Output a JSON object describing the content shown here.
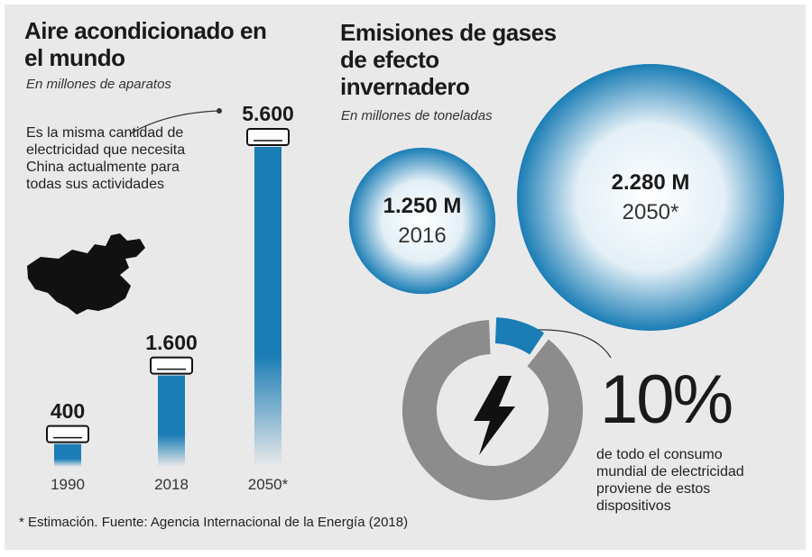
{
  "chart_data": [
    {
      "type": "bar",
      "title": "Aire acondicionado en el mundo",
      "subtitle": "En millones de aparatos",
      "annotation": "Es la misma cantidad de electricidad que necesita China actualmente para todas sus actividades",
      "categories": [
        "1990",
        "2018",
        "2050*"
      ],
      "values": [
        400,
        1600,
        5600
      ],
      "value_labels": [
        "400",
        "1.600",
        "5.600"
      ],
      "color": "#1a7db5"
    },
    {
      "type": "bubble",
      "title": "Emisiones de gases de efecto invernadero",
      "subtitle": "En millones de toneladas",
      "categories": [
        "2016",
        "2050*"
      ],
      "values": [
        1250,
        2280
      ],
      "value_labels": [
        "1.250 M",
        "2.280 M"
      ],
      "color": "#1a7db5"
    },
    {
      "type": "donut",
      "value": 10,
      "value_label": "10%",
      "text": "de todo el consumo mundial de electricidad proviene de estos dispositivos",
      "color": "#1a7db5",
      "rest_color": "#8c8c8c"
    }
  ],
  "footnote": "* Estimación. Fuente: Agencia Internacional de la Energía (2018)"
}
